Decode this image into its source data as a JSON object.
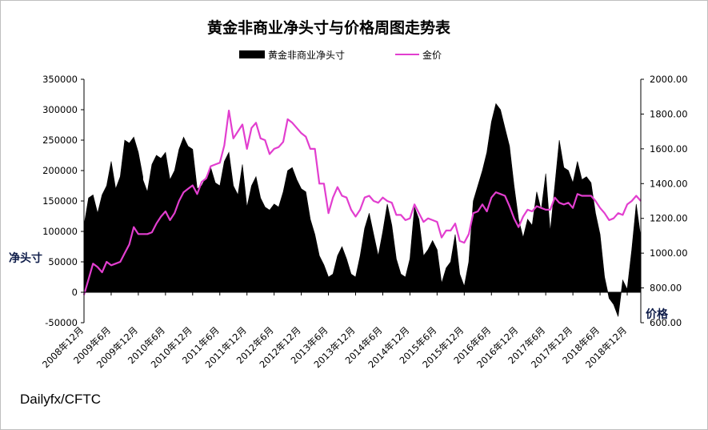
{
  "chart_data": {
    "type": "area+line",
    "title": "黄金非商业净头寸与价格周图走势表",
    "legend": {
      "position": "top",
      "entries": [
        {
          "name": "黄金非商业净头寸",
          "color": "#000000",
          "mark": "area"
        },
        {
          "name": "金价",
          "color": "#e23ecf",
          "mark": "line"
        }
      ]
    },
    "y_left": {
      "label": "净头寸",
      "range": [
        -50000,
        350000
      ],
      "ticks": [
        "350000",
        "300000",
        "250000",
        "200000",
        "150000",
        "100000",
        "50000",
        "0",
        "-50000"
      ]
    },
    "y_right": {
      "label": "价格",
      "range": [
        600,
        2000
      ],
      "ticks": [
        "2000.00",
        "1800.00",
        "1600.00",
        "1400.00",
        "1200.00",
        "1000.00",
        "800.00",
        "600.00"
      ]
    },
    "x": {
      "type": "date",
      "range": [
        "2008-12",
        "2019-03"
      ],
      "ticks": [
        "2008年12月",
        "2009年6月",
        "2009年12月",
        "2010年6月",
        "2010年12月",
        "2011年6月",
        "2011年12月",
        "2012年6月",
        "2012年12月",
        "2013年6月",
        "2013年12月",
        "2014年6月",
        "2014年12月",
        "2015年6月",
        "2015年12月",
        "2016年6月",
        "2016年12月",
        "2017年6月",
        "2017年12月",
        "2018年6月",
        "2018年12月"
      ]
    },
    "grid": false,
    "series": [
      {
        "name": "黄金非商业净头寸",
        "points": [
          [
            "2008-12",
            110000
          ],
          [
            "2009-01",
            155000
          ],
          [
            "2009-02",
            160000
          ],
          [
            "2009-03",
            130000
          ],
          [
            "2009-04",
            160000
          ],
          [
            "2009-05",
            175000
          ],
          [
            "2009-06",
            215000
          ],
          [
            "2009-07",
            170000
          ],
          [
            "2009-08",
            190000
          ],
          [
            "2009-09",
            250000
          ],
          [
            "2009-10",
            245000
          ],
          [
            "2009-11",
            255000
          ],
          [
            "2009-12",
            230000
          ],
          [
            "2009-13",
            190000
          ],
          [
            "2010-01",
            185000
          ],
          [
            "2010-02",
            165000
          ],
          [
            "2010-03",
            210000
          ],
          [
            "2010-04",
            225000
          ],
          [
            "2010-05",
            220000
          ],
          [
            "2010-06",
            230000
          ],
          [
            "2010-07",
            185000
          ],
          [
            "2010-08",
            200000
          ],
          [
            "2010-09",
            235000
          ],
          [
            "2010-10",
            255000
          ],
          [
            "2010-11",
            240000
          ],
          [
            "2010-12",
            235000
          ],
          [
            "2011-01",
            170000
          ],
          [
            "2011-02",
            175000
          ],
          [
            "2011-03",
            190000
          ],
          [
            "2011-04",
            205000
          ],
          [
            "2011-05",
            180000
          ],
          [
            "2011-06",
            175000
          ],
          [
            "2011-07",
            215000
          ],
          [
            "2011-08",
            230000
          ],
          [
            "2011-09",
            175000
          ],
          [
            "2011-10",
            160000
          ],
          [
            "2011-11",
            210000
          ],
          [
            "2011-12",
            140000
          ],
          [
            "2012-01",
            175000
          ],
          [
            "2012-02",
            190000
          ],
          [
            "2012-03",
            155000
          ],
          [
            "2012-04",
            140000
          ],
          [
            "2012-05",
            135000
          ],
          [
            "2012-06",
            145000
          ],
          [
            "2012-07",
            140000
          ],
          [
            "2012-08",
            165000
          ],
          [
            "2012-09",
            200000
          ],
          [
            "2012-10",
            205000
          ],
          [
            "2012-11",
            185000
          ],
          [
            "2012-12",
            170000
          ],
          [
            "2013-01",
            165000
          ],
          [
            "2013-02",
            120000
          ],
          [
            "2013-03",
            95000
          ],
          [
            "2013-04",
            60000
          ],
          [
            "2013-05",
            45000
          ],
          [
            "2013-06",
            25000
          ],
          [
            "2013-07",
            30000
          ],
          [
            "2013-08",
            60000
          ],
          [
            "2013-09",
            75000
          ],
          [
            "2013-10",
            55000
          ],
          [
            "2013-11",
            30000
          ],
          [
            "2013-12",
            25000
          ],
          [
            "2014-01",
            60000
          ],
          [
            "2014-02",
            105000
          ],
          [
            "2014-03",
            130000
          ],
          [
            "2014-04",
            95000
          ],
          [
            "2014-05",
            60000
          ],
          [
            "2014-06",
            100000
          ],
          [
            "2014-07",
            145000
          ],
          [
            "2014-08",
            110000
          ],
          [
            "2014-09",
            55000
          ],
          [
            "2014-10",
            30000
          ],
          [
            "2014-11",
            25000
          ],
          [
            "2014-12",
            55000
          ],
          [
            "2015-01",
            140000
          ],
          [
            "2015-02",
            120000
          ],
          [
            "2015-03",
            60000
          ],
          [
            "2015-04",
            70000
          ],
          [
            "2015-05",
            85000
          ],
          [
            "2015-06",
            70000
          ],
          [
            "2015-07",
            15000
          ],
          [
            "2015-08",
            40000
          ],
          [
            "2015-09",
            50000
          ],
          [
            "2015-10",
            95000
          ],
          [
            "2015-11",
            30000
          ],
          [
            "2015-12",
            10000
          ],
          [
            "2016-01",
            50000
          ],
          [
            "2016-02",
            150000
          ],
          [
            "2016-03",
            175000
          ],
          [
            "2016-04",
            200000
          ],
          [
            "2016-05",
            230000
          ],
          [
            "2016-06",
            280000
          ],
          [
            "2016-07",
            310000
          ],
          [
            "2016-08",
            300000
          ],
          [
            "2016-09",
            270000
          ],
          [
            "2016-10",
            240000
          ],
          [
            "2016-11",
            175000
          ],
          [
            "2016-12",
            120000
          ],
          [
            "2017-01",
            90000
          ],
          [
            "2017-02",
            120000
          ],
          [
            "2017-03",
            110000
          ],
          [
            "2017-04",
            165000
          ],
          [
            "2017-05",
            135000
          ],
          [
            "2017-06",
            195000
          ],
          [
            "2017-07",
            100000
          ],
          [
            "2017-08",
            175000
          ],
          [
            "2017-09",
            250000
          ],
          [
            "2017-10",
            205000
          ],
          [
            "2017-11",
            200000
          ],
          [
            "2017-12",
            180000
          ],
          [
            "2018-01",
            215000
          ],
          [
            "2018-02",
            185000
          ],
          [
            "2018-03",
            190000
          ],
          [
            "2018-04",
            180000
          ],
          [
            "2018-05",
            130000
          ],
          [
            "2018-06",
            95000
          ],
          [
            "2018-07",
            25000
          ],
          [
            "2018-08",
            -10000
          ],
          [
            "2018-09",
            -20000
          ],
          [
            "2018-10",
            -40000
          ],
          [
            "2018-11",
            20000
          ],
          [
            "2018-12",
            5000
          ],
          [
            "2019-01",
            70000
          ],
          [
            "2019-02",
            145000
          ],
          [
            "2019-03",
            90000
          ]
        ]
      },
      {
        "name": "金价",
        "points": [
          [
            "2008-12",
            760
          ],
          [
            "2009-01",
            850
          ],
          [
            "2009-02",
            940
          ],
          [
            "2009-03",
            920
          ],
          [
            "2009-04",
            890
          ],
          [
            "2009-05",
            950
          ],
          [
            "2009-06",
            930
          ],
          [
            "2009-07",
            940
          ],
          [
            "2009-08",
            950
          ],
          [
            "2009-09",
            1000
          ],
          [
            "2009-10",
            1050
          ],
          [
            "2009-11",
            1150
          ],
          [
            "2009-12",
            1110
          ],
          [
            "2010-01",
            1110
          ],
          [
            "2010-02",
            1110
          ],
          [
            "2010-03",
            1120
          ],
          [
            "2010-04",
            1170
          ],
          [
            "2010-05",
            1210
          ],
          [
            "2010-06",
            1240
          ],
          [
            "2010-07",
            1190
          ],
          [
            "2010-08",
            1230
          ],
          [
            "2010-09",
            1300
          ],
          [
            "2010-10",
            1350
          ],
          [
            "2010-11",
            1370
          ],
          [
            "2010-12",
            1390
          ],
          [
            "2011-01",
            1340
          ],
          [
            "2011-02",
            1410
          ],
          [
            "2011-03",
            1430
          ],
          [
            "2011-04",
            1500
          ],
          [
            "2011-05",
            1510
          ],
          [
            "2011-06",
            1520
          ],
          [
            "2011-07",
            1620
          ],
          [
            "2011-08",
            1820
          ],
          [
            "2011-09",
            1660
          ],
          [
            "2011-10",
            1700
          ],
          [
            "2011-11",
            1740
          ],
          [
            "2011-12",
            1600
          ],
          [
            "2012-01",
            1720
          ],
          [
            "2012-02",
            1750
          ],
          [
            "2012-03",
            1660
          ],
          [
            "2012-04",
            1650
          ],
          [
            "2012-05",
            1570
          ],
          [
            "2012-06",
            1600
          ],
          [
            "2012-07",
            1610
          ],
          [
            "2012-08",
            1640
          ],
          [
            "2012-09",
            1770
          ],
          [
            "2012-10",
            1750
          ],
          [
            "2012-11",
            1720
          ],
          [
            "2012-12",
            1690
          ],
          [
            "2013-01",
            1670
          ],
          [
            "2013-02",
            1600
          ],
          [
            "2013-03",
            1600
          ],
          [
            "2013-04",
            1400
          ],
          [
            "2013-05",
            1400
          ],
          [
            "2013-06",
            1230
          ],
          [
            "2013-07",
            1320
          ],
          [
            "2013-08",
            1380
          ],
          [
            "2013-09",
            1330
          ],
          [
            "2013-10",
            1320
          ],
          [
            "2013-11",
            1250
          ],
          [
            "2013-12",
            1210
          ],
          [
            "2014-01",
            1250
          ],
          [
            "2014-02",
            1320
          ],
          [
            "2014-03",
            1330
          ],
          [
            "2014-04",
            1300
          ],
          [
            "2014-05",
            1290
          ],
          [
            "2014-06",
            1320
          ],
          [
            "2014-07",
            1300
          ],
          [
            "2014-08",
            1290
          ],
          [
            "2014-09",
            1220
          ],
          [
            "2014-10",
            1220
          ],
          [
            "2014-11",
            1190
          ],
          [
            "2014-12",
            1200
          ],
          [
            "2015-01",
            1280
          ],
          [
            "2015-02",
            1230
          ],
          [
            "2015-03",
            1180
          ],
          [
            "2015-04",
            1200
          ],
          [
            "2015-05",
            1190
          ],
          [
            "2015-06",
            1180
          ],
          [
            "2015-07",
            1090
          ],
          [
            "2015-08",
            1130
          ],
          [
            "2015-09",
            1130
          ],
          [
            "2015-10",
            1170
          ],
          [
            "2015-11",
            1070
          ],
          [
            "2015-12",
            1060
          ],
          [
            "2016-01",
            1110
          ],
          [
            "2016-02",
            1230
          ],
          [
            "2016-03",
            1240
          ],
          [
            "2016-04",
            1280
          ],
          [
            "2016-05",
            1240
          ],
          [
            "2016-06",
            1320
          ],
          [
            "2016-07",
            1350
          ],
          [
            "2016-08",
            1340
          ],
          [
            "2016-09",
            1330
          ],
          [
            "2016-10",
            1270
          ],
          [
            "2016-11",
            1200
          ],
          [
            "2016-12",
            1150
          ],
          [
            "2017-01",
            1210
          ],
          [
            "2017-02",
            1250
          ],
          [
            "2017-03",
            1240
          ],
          [
            "2017-04",
            1270
          ],
          [
            "2017-05",
            1260
          ],
          [
            "2017-06",
            1250
          ],
          [
            "2017-07",
            1250
          ],
          [
            "2017-08",
            1320
          ],
          [
            "2017-09",
            1290
          ],
          [
            "2017-10",
            1280
          ],
          [
            "2017-11",
            1290
          ],
          [
            "2017-12",
            1260
          ],
          [
            "2018-01",
            1340
          ],
          [
            "2018-02",
            1330
          ],
          [
            "2018-03",
            1330
          ],
          [
            "2018-04",
            1330
          ],
          [
            "2018-05",
            1300
          ],
          [
            "2018-06",
            1260
          ],
          [
            "2018-07",
            1230
          ],
          [
            "2018-08",
            1190
          ],
          [
            "2018-09",
            1200
          ],
          [
            "2018-10",
            1230
          ],
          [
            "2018-11",
            1220
          ],
          [
            "2018-12",
            1280
          ],
          [
            "2019-01",
            1300
          ],
          [
            "2019-02",
            1330
          ],
          [
            "2019-03",
            1300
          ]
        ]
      }
    ]
  },
  "source_note": "Dailyfx/CFTC"
}
